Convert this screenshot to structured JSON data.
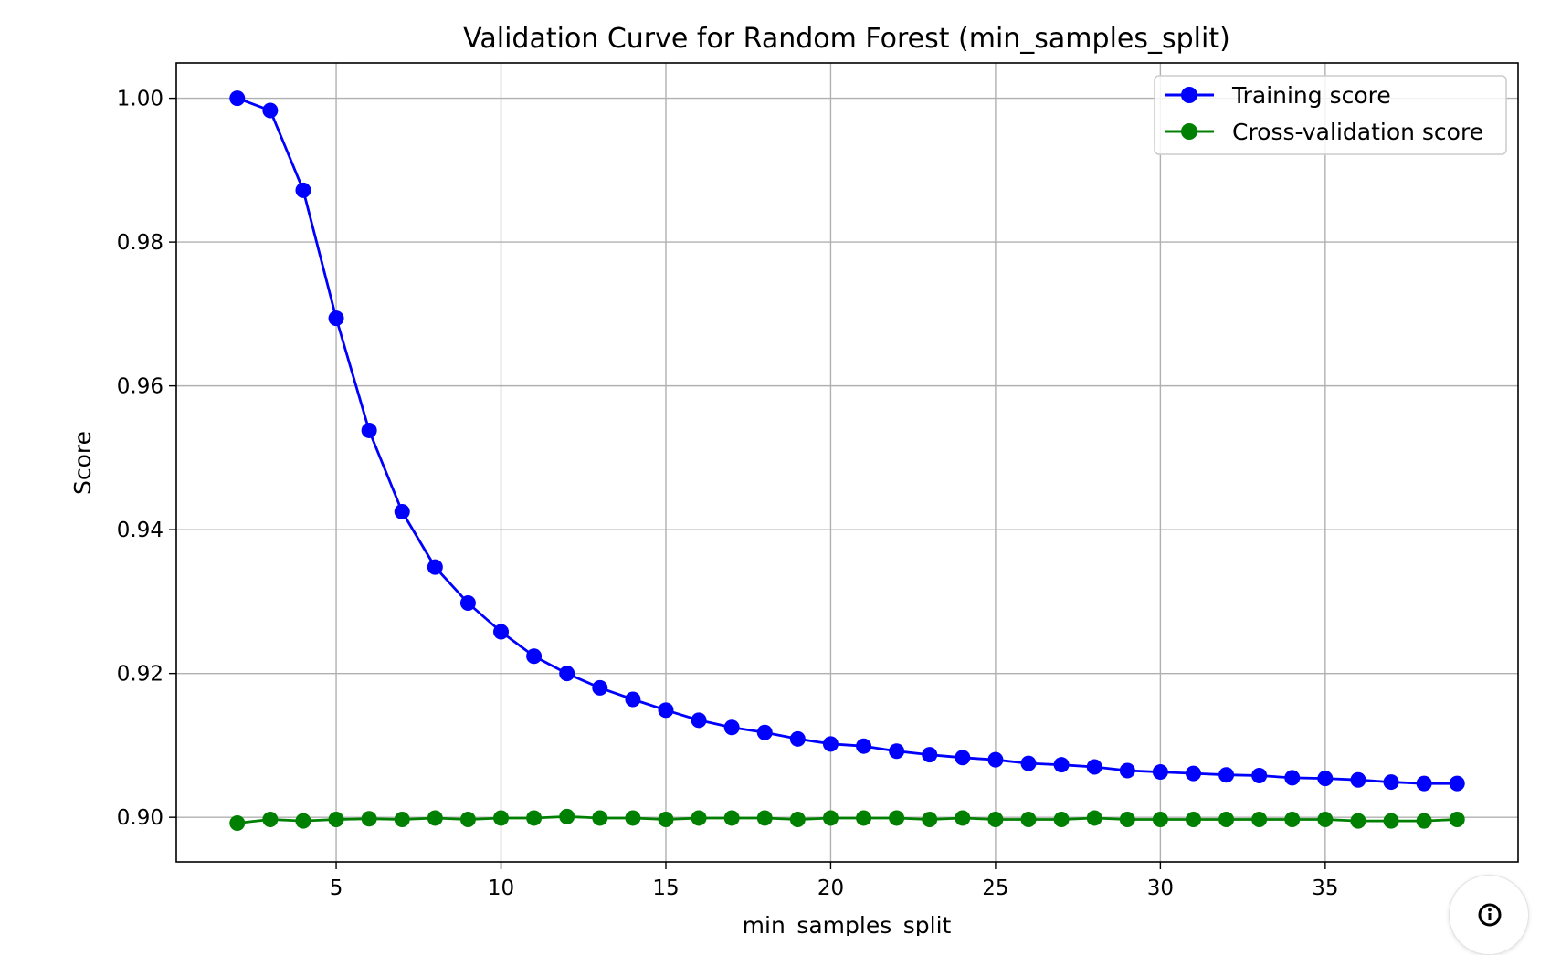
{
  "chart_data": {
    "type": "line",
    "title": "Validation Curve for Random Forest (min_samples_split)",
    "xlabel": "min_samples_split",
    "ylabel": "Score",
    "xlim": [
      0.15,
      40.85
    ],
    "ylim": [
      0.8938,
      1.0049
    ],
    "xticks": [
      5,
      10,
      15,
      20,
      25,
      30,
      35
    ],
    "xtick_labels": [
      "5",
      "10",
      "15",
      "20",
      "25",
      "30",
      "35"
    ],
    "yticks": [
      0.9,
      0.92,
      0.94,
      0.96,
      0.98,
      1.0
    ],
    "ytick_labels": [
      "0.90",
      "0.92",
      "0.94",
      "0.96",
      "0.98",
      "1.00"
    ],
    "grid": true,
    "legend_position": "top-right",
    "x": [
      2,
      3,
      4,
      5,
      6,
      7,
      8,
      9,
      10,
      11,
      12,
      13,
      14,
      15,
      16,
      17,
      18,
      19,
      20,
      21,
      22,
      23,
      24,
      25,
      26,
      27,
      28,
      29,
      30,
      31,
      32,
      33,
      34,
      35,
      36,
      37,
      38,
      39
    ],
    "series": [
      {
        "name": "Training score",
        "color": "#0000ff",
        "marker": "circle",
        "values": [
          1.0,
          0.9983,
          0.9872,
          0.9694,
          0.9538,
          0.9425,
          0.9348,
          0.9298,
          0.9258,
          0.9224,
          0.92,
          0.918,
          0.9164,
          0.9149,
          0.9135,
          0.9125,
          0.9118,
          0.9109,
          0.9102,
          0.9099,
          0.9092,
          0.9087,
          0.9083,
          0.908,
          0.9075,
          0.9073,
          0.907,
          0.9065,
          0.9063,
          0.9061,
          0.9059,
          0.9058,
          0.9055,
          0.9054,
          0.9052,
          0.9049,
          0.9047,
          0.9047
        ]
      },
      {
        "name": "Cross-validation score",
        "color": "#008000",
        "marker": "circle",
        "values": [
          0.8992,
          0.8997,
          0.8995,
          0.8997,
          0.8998,
          0.8997,
          0.8999,
          0.8997,
          0.8999,
          0.8999,
          0.9001,
          0.8999,
          0.8999,
          0.8997,
          0.8999,
          0.8999,
          0.8999,
          0.8997,
          0.8999,
          0.8999,
          0.8999,
          0.8997,
          0.8999,
          0.8997,
          0.8997,
          0.8997,
          0.8999,
          0.8997,
          0.8997,
          0.8997,
          0.8997,
          0.8997,
          0.8997,
          0.8997,
          0.8995,
          0.8995,
          0.8995,
          0.8997
        ]
      }
    ]
  },
  "ui": {
    "info_icon": "info-circle-icon"
  }
}
